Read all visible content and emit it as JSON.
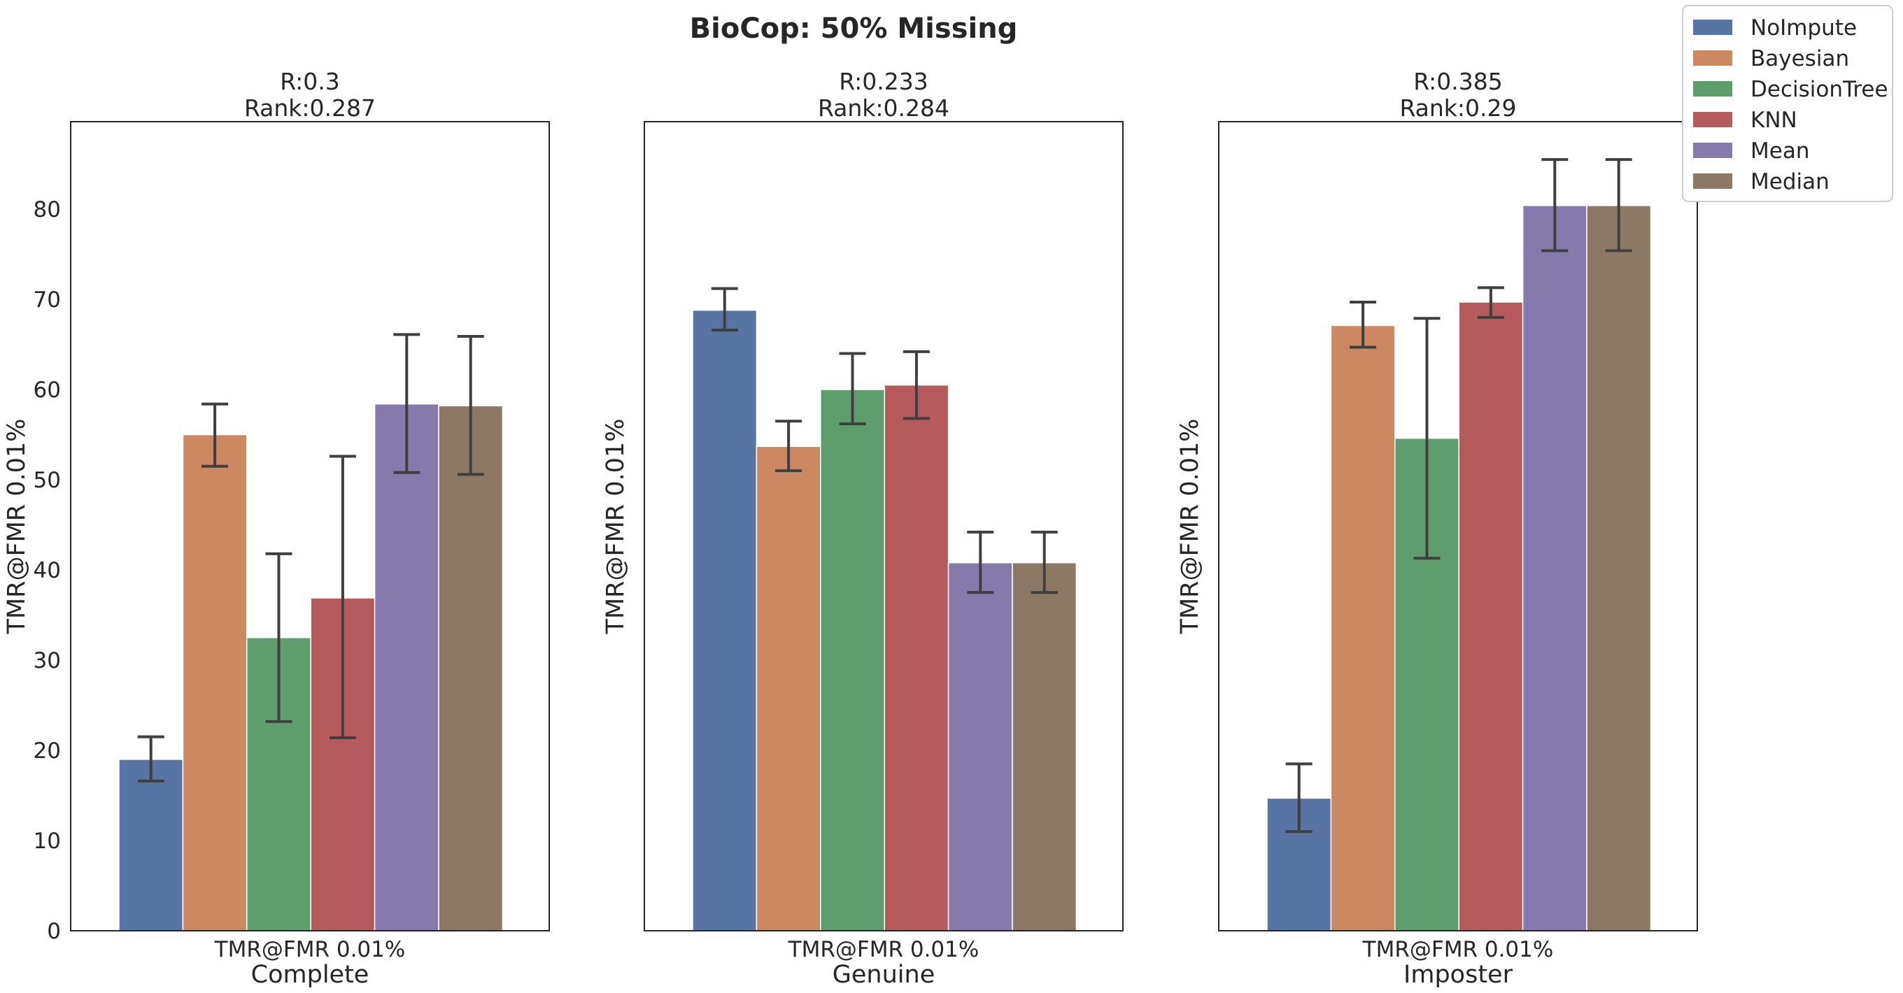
{
  "figure": {
    "title": "BioCop: 50% Missing"
  },
  "legend": {
    "placement": "top-right",
    "entries": [
      {
        "label": "NoImpute",
        "color": "#5874a5"
      },
      {
        "label": "Bayesian",
        "color": "#cb8861"
      },
      {
        "label": "DecisionTree",
        "color": "#5e9e6e"
      },
      {
        "label": "KNN",
        "color": "#b55b5e"
      },
      {
        "label": "Mean",
        "color": "#8679ab"
      },
      {
        "label": "Median",
        "color": "#8b7965"
      }
    ]
  },
  "chart_data": [
    {
      "type": "bar",
      "title": "R:0.3\nRank:0.287",
      "title_lines": [
        "R:0.3",
        "Rank:0.287"
      ],
      "xtick": "TMR@FMR 0.01%",
      "xlabel": "Complete",
      "ylabel": "TMR@FMR 0.01%",
      "ylim": [
        0,
        89.7
      ],
      "yticks": [
        0,
        10,
        20,
        30,
        40,
        50,
        60,
        70,
        80
      ],
      "grid": false,
      "categories": [
        "TMR@FMR 0.01%"
      ],
      "series": [
        {
          "name": "NoImpute",
          "values": [
            19.0
          ],
          "err": [
            16.6,
            21.5
          ]
        },
        {
          "name": "Bayesian",
          "values": [
            55.0
          ],
          "err": [
            51.5,
            58.4
          ]
        },
        {
          "name": "DecisionTree",
          "values": [
            32.5
          ],
          "err": [
            23.2,
            41.8
          ]
        },
        {
          "name": "KNN",
          "values": [
            36.9
          ],
          "err": [
            21.4,
            52.6
          ]
        },
        {
          "name": "Mean",
          "values": [
            58.4
          ],
          "err": [
            50.8,
            66.1
          ]
        },
        {
          "name": "Median",
          "values": [
            58.2
          ],
          "err": [
            50.6,
            65.9
          ]
        }
      ]
    },
    {
      "type": "bar",
      "title": "R:0.233\nRank:0.284",
      "title_lines": [
        "R:0.233",
        "Rank:0.284"
      ],
      "xtick": "TMR@FMR 0.01%",
      "xlabel": "Genuine",
      "ylabel": "TMR@FMR 0.01%",
      "ylim": [
        0,
        89.7
      ],
      "yticks": [],
      "grid": false,
      "categories": [
        "TMR@FMR 0.01%"
      ],
      "series": [
        {
          "name": "NoImpute",
          "values": [
            68.8
          ],
          "err": [
            66.6,
            71.2
          ]
        },
        {
          "name": "Bayesian",
          "values": [
            53.7
          ],
          "err": [
            51.0,
            56.5
          ]
        },
        {
          "name": "DecisionTree",
          "values": [
            60.0
          ],
          "err": [
            56.2,
            64.0
          ]
        },
        {
          "name": "KNN",
          "values": [
            60.5
          ],
          "err": [
            56.8,
            64.2
          ]
        },
        {
          "name": "Mean",
          "values": [
            40.8
          ],
          "err": [
            37.5,
            44.2
          ]
        },
        {
          "name": "Median",
          "values": [
            40.8
          ],
          "err": [
            37.5,
            44.2
          ]
        }
      ]
    },
    {
      "type": "bar",
      "title": "R:0.385\nRank:0.29",
      "title_lines": [
        "R:0.385",
        "Rank:0.29"
      ],
      "xtick": "TMR@FMR 0.01%",
      "xlabel": "Imposter",
      "ylabel": "TMR@FMR 0.01%",
      "ylim": [
        0,
        89.7
      ],
      "yticks": [],
      "grid": false,
      "categories": [
        "TMR@FMR 0.01%"
      ],
      "series": [
        {
          "name": "NoImpute",
          "values": [
            14.7
          ],
          "err": [
            11.0,
            18.5
          ]
        },
        {
          "name": "Bayesian",
          "values": [
            67.1
          ],
          "err": [
            64.7,
            69.7
          ]
        },
        {
          "name": "DecisionTree",
          "values": [
            54.6
          ],
          "err": [
            41.3,
            67.9
          ]
        },
        {
          "name": "KNN",
          "values": [
            69.7
          ],
          "err": [
            68.0,
            71.3
          ]
        },
        {
          "name": "Mean",
          "values": [
            80.4
          ],
          "err": [
            75.4,
            85.5
          ]
        },
        {
          "name": "Median",
          "values": [
            80.4
          ],
          "err": [
            75.4,
            85.5
          ]
        }
      ]
    }
  ]
}
